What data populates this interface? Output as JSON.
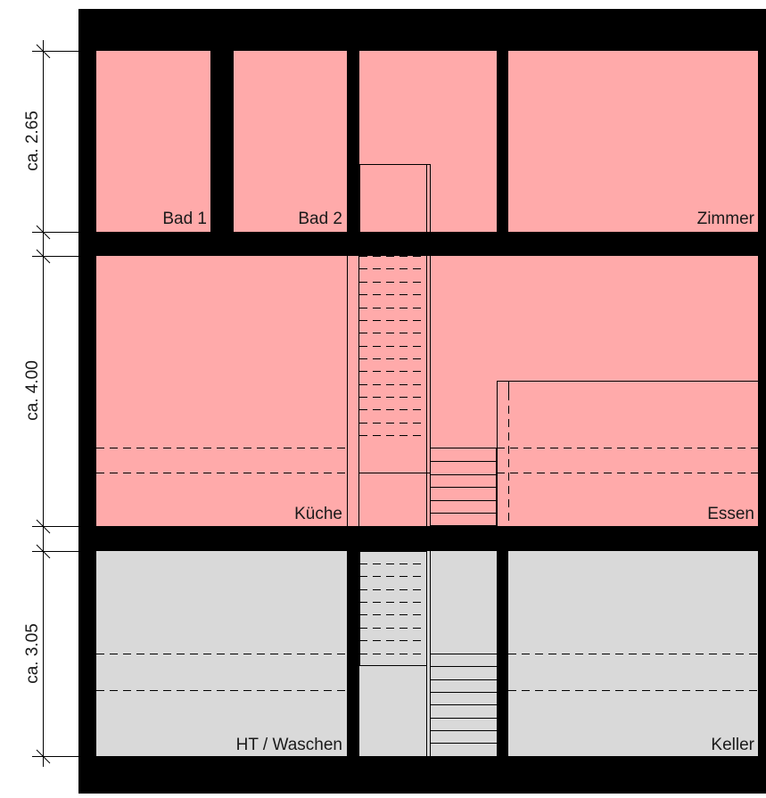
{
  "colors": {
    "wall": "#000000",
    "room_upper": "#ffaaaa",
    "room_lower": "#d9d9d9",
    "line": "#000000"
  },
  "rooms": [
    {
      "id": "bad1",
      "label": "Bad 1",
      "fill": "room_upper"
    },
    {
      "id": "bad2",
      "label": "Bad 2",
      "fill": "room_upper"
    },
    {
      "id": "stair-hall-top",
      "label": "",
      "fill": "room_upper"
    },
    {
      "id": "zimmer",
      "label": "Zimmer",
      "fill": "room_upper"
    },
    {
      "id": "kueche",
      "label": "Küche",
      "fill": "room_upper"
    },
    {
      "id": "essen",
      "label": "Essen",
      "fill": "room_upper"
    },
    {
      "id": "ht-waschen",
      "label": "HT / Waschen",
      "fill": "room_lower"
    },
    {
      "id": "stair-hall-bottom",
      "label": "",
      "fill": "room_lower"
    },
    {
      "id": "keller",
      "label": "Keller",
      "fill": "room_lower"
    }
  ],
  "dimensions": [
    {
      "label": "ca. 2.65"
    },
    {
      "label": "ca. 4.00"
    },
    {
      "label": "ca. 3.05"
    }
  ]
}
